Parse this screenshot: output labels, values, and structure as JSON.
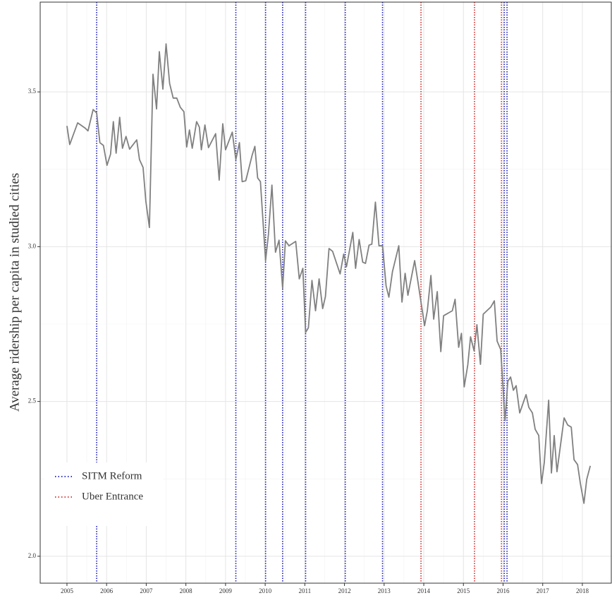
{
  "chart_data": {
    "type": "line",
    "ylabel": "Average ridership per capita in studied cities",
    "color": "#808080",
    "x": [
      2005.0,
      2005.07,
      2005.27,
      2005.46,
      2005.53,
      2005.66,
      2005.75,
      2005.83,
      2005.92,
      2006.01,
      2006.1,
      2006.17,
      2006.24,
      2006.33,
      2006.4,
      2006.49,
      2006.58,
      2006.76,
      2006.83,
      2006.92,
      2006.99,
      2007.08,
      2007.17,
      2007.26,
      2007.33,
      2007.42,
      2007.5,
      2007.59,
      2007.68,
      2007.77,
      2007.86,
      2007.95,
      2008.02,
      2008.09,
      2008.16,
      2008.27,
      2008.34,
      2008.39,
      2008.48,
      2008.57,
      2008.75,
      2008.84,
      2008.93,
      2009.0,
      2009.17,
      2009.26,
      2009.35,
      2009.42,
      2009.51,
      2009.67,
      2009.74,
      2009.81,
      2009.88,
      2010.01,
      2010.08,
      2010.17,
      2010.26,
      2010.35,
      2010.44,
      2010.51,
      2010.6,
      2010.77,
      2010.86,
      2010.95,
      2011.02,
      2011.09,
      2011.18,
      2011.27,
      2011.36,
      2011.45,
      2011.52,
      2011.61,
      2011.7,
      2011.89,
      2011.98,
      2012.05,
      2012.21,
      2012.28,
      2012.37,
      2012.46,
      2012.53,
      2012.62,
      2012.69,
      2012.78,
      2012.87,
      2012.96,
      2013.05,
      2013.12,
      2013.21,
      2013.37,
      2013.45,
      2013.53,
      2013.6,
      2013.77,
      2013.85,
      2014.02,
      2014.09,
      2014.18,
      2014.25,
      2014.34,
      2014.43,
      2014.5,
      2014.72,
      2014.79,
      2014.88,
      2014.95,
      2015.02,
      2015.11,
      2015.18,
      2015.27,
      2015.34,
      2015.43,
      2015.5,
      2015.69,
      2015.78,
      2015.85,
      2015.94,
      2016.05,
      2016.12,
      2016.19,
      2016.26,
      2016.33,
      2016.42,
      2016.58,
      2016.65,
      2016.74,
      2016.81,
      2016.9,
      2016.97,
      2017.04,
      2017.15,
      2017.22,
      2017.29,
      2017.36,
      2017.54,
      2017.63,
      2017.72,
      2017.79,
      2017.88,
      2017.95,
      2018.04,
      2018.11,
      2018.2
    ],
    "values": [
      3.39,
      3.33,
      3.4,
      3.383,
      3.374,
      3.443,
      3.432,
      3.336,
      3.327,
      3.263,
      3.299,
      3.404,
      3.302,
      3.418,
      3.318,
      3.356,
      3.315,
      3.345,
      3.281,
      3.256,
      3.147,
      3.062,
      3.557,
      3.445,
      3.63,
      3.509,
      3.655,
      3.527,
      3.48,
      3.48,
      3.45,
      3.436,
      3.322,
      3.377,
      3.318,
      3.404,
      3.386,
      3.313,
      3.393,
      3.32,
      3.365,
      3.215,
      3.397,
      3.313,
      3.37,
      3.281,
      3.336,
      3.21,
      3.213,
      3.295,
      3.324,
      3.222,
      3.21,
      2.955,
      3.037,
      3.199,
      2.982,
      3.021,
      2.866,
      3.019,
      3.003,
      3.017,
      2.896,
      2.93,
      2.723,
      2.738,
      2.891,
      2.793,
      2.896,
      2.8,
      2.839,
      2.994,
      2.985,
      2.912,
      2.976,
      2.935,
      3.046,
      2.93,
      3.023,
      2.95,
      2.946,
      3.005,
      3.008,
      3.144,
      3.003,
      3.003,
      2.873,
      2.837,
      2.919,
      3.003,
      2.821,
      2.914,
      2.843,
      2.955,
      2.889,
      2.745,
      2.793,
      2.907,
      2.766,
      2.855,
      2.661,
      2.777,
      2.793,
      2.83,
      2.675,
      2.72,
      2.547,
      2.618,
      2.709,
      2.663,
      2.748,
      2.62,
      2.782,
      2.805,
      2.825,
      2.695,
      2.668,
      2.438,
      2.565,
      2.579,
      2.536,
      2.551,
      2.463,
      2.522,
      2.481,
      2.463,
      2.41,
      2.39,
      2.235,
      2.303,
      2.504,
      2.269,
      2.39,
      2.273,
      2.447,
      2.424,
      2.417,
      2.312,
      2.296,
      2.235,
      2.171,
      2.248,
      2.292
    ],
    "events": [
      {
        "name": "SITM Reform",
        "color": "#1a1ab8",
        "x": [
          2005.75,
          2009.26,
          2010.01,
          2010.44,
          2011.02,
          2012.02,
          2012.96,
          2016.03,
          2016.1
        ]
      },
      {
        "name": "Uber Entrance",
        "color": "#d12a2a",
        "x": [
          2013.93,
          2015.28,
          2015.96
        ]
      }
    ],
    "xlim": [
      2004.325,
      2018.73
    ],
    "ylim": [
      1.913,
      3.79
    ],
    "xticks": [
      2005,
      2006,
      2007,
      2008,
      2009,
      2010,
      2011,
      2012,
      2013,
      2014,
      2015,
      2016,
      2017,
      2018
    ],
    "yticks": [
      {
        "value": 2,
        "label": "2.0"
      },
      2.5,
      {
        "value": 3,
        "label": "3.0"
      },
      3.5
    ],
    "grid": true,
    "legend": "bottom-left"
  }
}
